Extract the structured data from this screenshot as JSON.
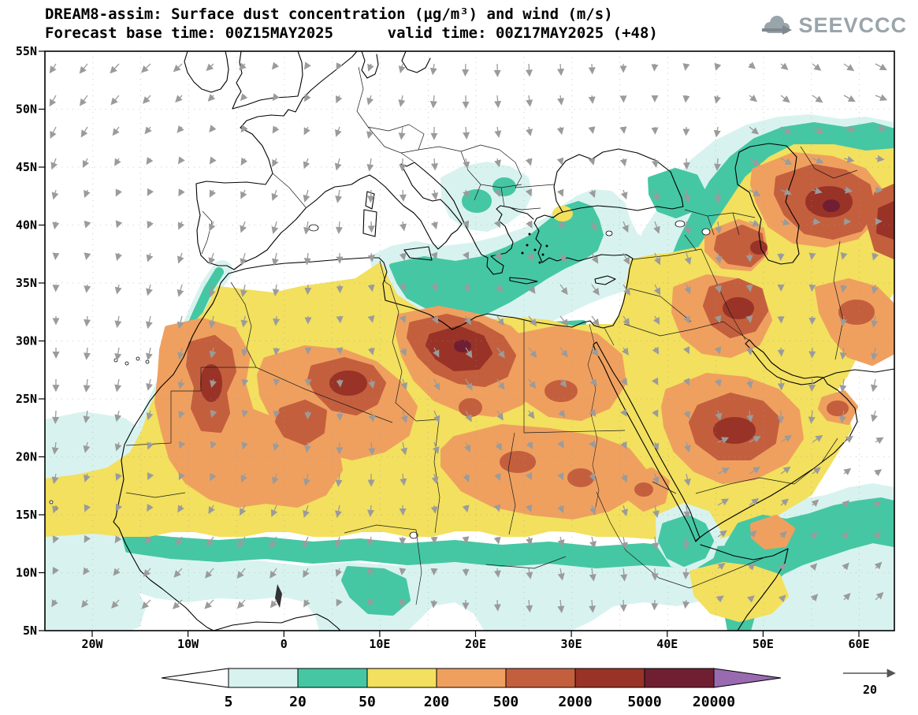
{
  "title": {
    "line1": "DREAM8-assim: Surface dust concentration (µg/m³) and wind (m/s)",
    "line2": "Forecast base time: 00Z15MAY2025      valid time: 00Z17MAY2025 (+48)"
  },
  "logo": {
    "text": "SEEVCCC"
  },
  "axes": {
    "lat_labels": [
      "55N",
      "50N",
      "45N",
      "40N",
      "35N",
      "30N",
      "25N",
      "20N",
      "15N",
      "10N",
      "5N"
    ],
    "lon_labels": [
      "20W",
      "10W",
      "0",
      "10E",
      "20E",
      "30E",
      "40E",
      "50E",
      "60E"
    ]
  },
  "colorbar": {
    "labels": [
      "5",
      "20",
      "50",
      "200",
      "500",
      "2000",
      "5000",
      "20000"
    ]
  },
  "wind_ref": {
    "label": "20"
  },
  "chart_data": {
    "type": "heatmap",
    "title": "DREAM8-assim surface dust concentration and wind",
    "units": "µg/m³",
    "wind_units": "m/s",
    "base_time": "00Z15MAY2025",
    "valid_time": "00Z17MAY2025",
    "forecast_hour": 48,
    "lon_range": [
      -25,
      64
    ],
    "lat_range": [
      5,
      55
    ],
    "levels": [
      5,
      20,
      50,
      200,
      500,
      2000,
      5000,
      20000
    ],
    "level_colors": [
      "#ffffff",
      "#d8f3ef",
      "#45c7a4",
      "#f2e05e",
      "#efa05f",
      "#c45f3e",
      "#993327",
      "#701f33",
      "#9a6ab0"
    ],
    "wind_reference": 20,
    "wind_color": "#9b9b9b",
    "legend_position": "bottom",
    "grid": true
  }
}
